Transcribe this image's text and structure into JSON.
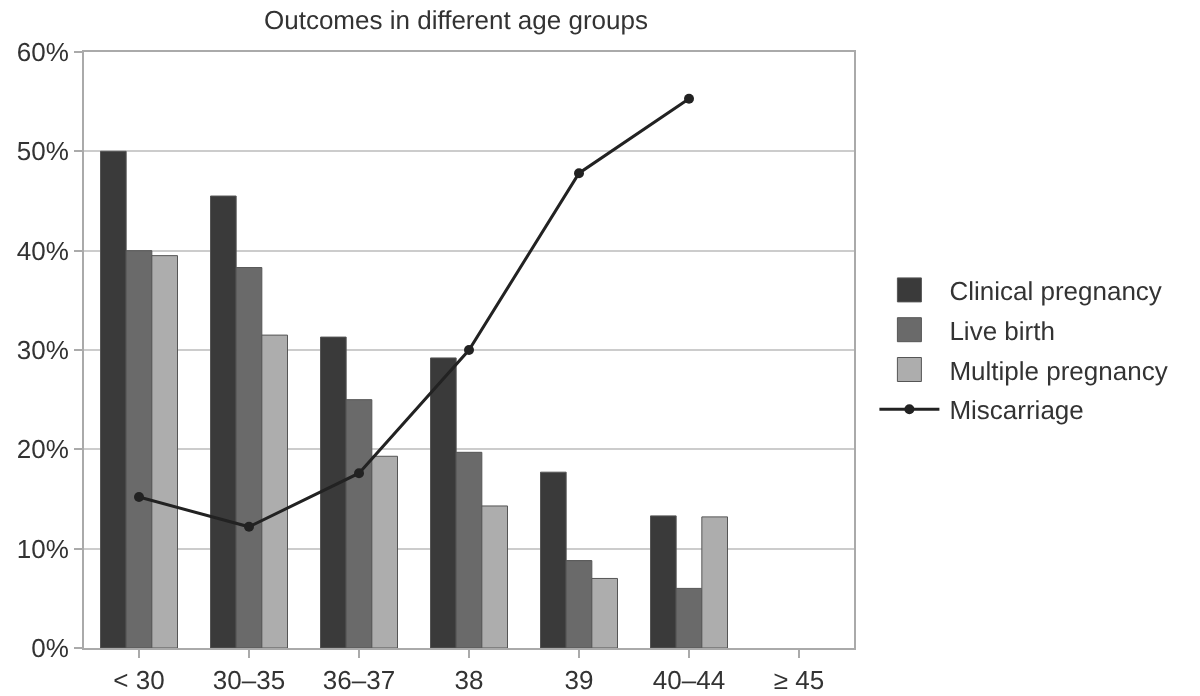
{
  "chart_data": {
    "type": "bar",
    "title": "Outcomes in different age groups",
    "categories": [
      "< 30",
      "30–35",
      "36–37",
      "38",
      "39",
      "40–44",
      "≥ 45"
    ],
    "series": [
      {
        "name": "Clinical pregnancy",
        "color": "#3a3a3a",
        "values": [
          50,
          45.5,
          31.3,
          29.2,
          17.7,
          13.3,
          null
        ]
      },
      {
        "name": "Live birth",
        "color": "#6a6a6a",
        "values": [
          40,
          38.3,
          25,
          19.7,
          8.8,
          6,
          null
        ]
      },
      {
        "name": "Multiple pregnancy",
        "color": "#adadad",
        "values": [
          39.5,
          31.5,
          19.3,
          14.3,
          7,
          13.2,
          null
        ]
      },
      {
        "name": "Miscarriage",
        "type": "line",
        "color": "#222222",
        "marker": "circle",
        "values": [
          15.2,
          12.2,
          17.6,
          30,
          47.8,
          55.3,
          null
        ]
      }
    ],
    "ylim": [
      0,
      60
    ],
    "yticks": [
      {
        "value": 0,
        "label": "0%"
      },
      {
        "value": 10,
        "label": "10%"
      },
      {
        "value": 20,
        "label": "20%"
      },
      {
        "value": 30,
        "label": "30%"
      },
      {
        "value": 40,
        "label": "40%"
      },
      {
        "value": 50,
        "label": "50%"
      },
      {
        "value": 60,
        "label": "60%"
      }
    ],
    "grid": "y",
    "legend": "right"
  }
}
